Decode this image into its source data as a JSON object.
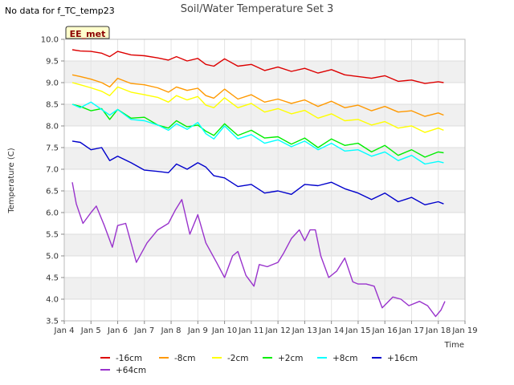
{
  "no_data_text": "No data for f_TC_temp23",
  "chart_data": {
    "type": "line",
    "title": "Soil/Water Temperature Set 3",
    "xlabel": "Time",
    "ylabel": "Temperature (C)",
    "badge": "EE_met",
    "xlim": [
      4,
      19
    ],
    "ylim": [
      3.5,
      10.0
    ],
    "x_ticks": [
      "Jan 4",
      "Jan 5",
      "Jan 6",
      "Jan 7",
      "Jan 8",
      "Jan 9",
      "Jan 10",
      "Jan 11",
      "Jan 12",
      "Jan 13",
      "Jan 14",
      "Jan 15",
      "Jan 16",
      "Jan 17",
      "Jan 18",
      "Jan 19"
    ],
    "y_ticks": [
      "3.5",
      "4.0",
      "4.5",
      "5.0",
      "5.5",
      "6.0",
      "6.5",
      "7.0",
      "7.5",
      "8.0",
      "8.5",
      "9.0",
      "9.5",
      "10.0"
    ],
    "grid": true,
    "legend_position": "bottom",
    "series": [
      {
        "name": "-16cm",
        "color": "#dd0000",
        "x": [
          4.3,
          4.6,
          5.0,
          5.4,
          5.7,
          6.0,
          6.5,
          7.0,
          7.5,
          7.9,
          8.2,
          8.6,
          9.0,
          9.3,
          9.6,
          10.0,
          10.5,
          11.0,
          11.5,
          12.0,
          12.5,
          13.0,
          13.5,
          14.0,
          14.5,
          15.0,
          15.5,
          16.0,
          16.5,
          17.0,
          17.5,
          18.0,
          18.2
        ],
        "y": [
          9.76,
          9.73,
          9.72,
          9.68,
          9.6,
          9.72,
          9.64,
          9.62,
          9.57,
          9.52,
          9.6,
          9.5,
          9.56,
          9.42,
          9.38,
          9.55,
          9.38,
          9.42,
          9.28,
          9.36,
          9.26,
          9.33,
          9.22,
          9.3,
          9.18,
          9.14,
          9.1,
          9.16,
          9.03,
          9.06,
          8.98,
          9.02,
          9.0
        ]
      },
      {
        "name": "-8cm",
        "color": "#ff9900",
        "x": [
          4.3,
          4.6,
          5.0,
          5.4,
          5.7,
          6.0,
          6.5,
          7.0,
          7.5,
          7.9,
          8.2,
          8.6,
          9.0,
          9.3,
          9.6,
          10.0,
          10.5,
          11.0,
          11.5,
          12.0,
          12.5,
          13.0,
          13.5,
          14.0,
          14.5,
          15.0,
          15.5,
          16.0,
          16.5,
          17.0,
          17.5,
          18.0,
          18.2
        ],
        "y": [
          9.18,
          9.14,
          9.08,
          9.0,
          8.9,
          9.1,
          8.98,
          8.95,
          8.88,
          8.78,
          8.9,
          8.82,
          8.87,
          8.7,
          8.64,
          8.85,
          8.62,
          8.72,
          8.55,
          8.62,
          8.52,
          8.6,
          8.45,
          8.57,
          8.42,
          8.48,
          8.35,
          8.45,
          8.32,
          8.35,
          8.22,
          8.3,
          8.25
        ]
      },
      {
        "name": "-2cm",
        "color": "#ffff00",
        "x": [
          4.3,
          4.6,
          5.0,
          5.4,
          5.7,
          6.0,
          6.5,
          7.0,
          7.5,
          7.9,
          8.2,
          8.6,
          9.0,
          9.3,
          9.6,
          10.0,
          10.5,
          11.0,
          11.5,
          12.0,
          12.5,
          13.0,
          13.5,
          14.0,
          14.5,
          15.0,
          15.5,
          16.0,
          16.5,
          17.0,
          17.5,
          18.0,
          18.2
        ],
        "y": [
          9.0,
          8.95,
          8.88,
          8.8,
          8.7,
          8.9,
          8.78,
          8.72,
          8.66,
          8.55,
          8.7,
          8.6,
          8.68,
          8.48,
          8.42,
          8.65,
          8.42,
          8.52,
          8.32,
          8.4,
          8.28,
          8.36,
          8.18,
          8.28,
          8.12,
          8.15,
          8.02,
          8.1,
          7.95,
          8.0,
          7.85,
          7.95,
          7.9
        ]
      },
      {
        "name": "+2cm",
        "color": "#00ee00",
        "x": [
          4.3,
          4.6,
          5.0,
          5.4,
          5.7,
          6.0,
          6.5,
          7.0,
          7.5,
          7.9,
          8.2,
          8.6,
          9.0,
          9.3,
          9.6,
          10.0,
          10.5,
          11.0,
          11.5,
          12.0,
          12.5,
          13.0,
          13.5,
          14.0,
          14.5,
          15.0,
          15.5,
          16.0,
          16.5,
          17.0,
          17.5,
          18.0,
          18.2
        ],
        "y": [
          8.5,
          8.45,
          8.35,
          8.4,
          8.15,
          8.38,
          8.18,
          8.2,
          8.02,
          7.95,
          8.12,
          7.98,
          8.02,
          7.88,
          7.78,
          8.05,
          7.78,
          7.9,
          7.72,
          7.75,
          7.58,
          7.72,
          7.5,
          7.7,
          7.55,
          7.6,
          7.4,
          7.55,
          7.32,
          7.45,
          7.28,
          7.4,
          7.38
        ]
      },
      {
        "name": "+8cm",
        "color": "#00ffff",
        "x": [
          4.3,
          4.6,
          5.0,
          5.4,
          5.7,
          6.0,
          6.5,
          7.0,
          7.5,
          7.9,
          8.2,
          8.6,
          9.0,
          9.3,
          9.6,
          10.0,
          10.5,
          11.0,
          11.5,
          12.0,
          12.5,
          13.0,
          13.5,
          14.0,
          14.5,
          15.0,
          15.5,
          16.0,
          16.5,
          17.0,
          17.5,
          18.0,
          18.2
        ],
        "y": [
          8.5,
          8.42,
          8.55,
          8.38,
          8.25,
          8.38,
          8.15,
          8.12,
          8.02,
          7.9,
          8.05,
          7.92,
          8.08,
          7.82,
          7.7,
          8.0,
          7.7,
          7.8,
          7.6,
          7.68,
          7.52,
          7.65,
          7.45,
          7.6,
          7.42,
          7.45,
          7.3,
          7.4,
          7.2,
          7.32,
          7.12,
          7.18,
          7.15
        ]
      },
      {
        "name": "+16cm",
        "color": "#0000cc",
        "x": [
          4.3,
          4.6,
          5.0,
          5.4,
          5.7,
          6.0,
          6.5,
          7.0,
          7.5,
          7.9,
          8.2,
          8.6,
          9.0,
          9.3,
          9.6,
          10.0,
          10.5,
          11.0,
          11.5,
          12.0,
          12.5,
          13.0,
          13.5,
          14.0,
          14.5,
          15.0,
          15.5,
          16.0,
          16.5,
          17.0,
          17.5,
          18.0,
          18.2
        ],
        "y": [
          7.65,
          7.62,
          7.45,
          7.5,
          7.2,
          7.3,
          7.15,
          6.98,
          6.95,
          6.92,
          7.12,
          7.0,
          7.15,
          7.05,
          6.85,
          6.8,
          6.6,
          6.65,
          6.45,
          6.5,
          6.42,
          6.65,
          6.62,
          6.7,
          6.55,
          6.45,
          6.3,
          6.45,
          6.25,
          6.35,
          6.18,
          6.25,
          6.2
        ]
      },
      {
        "name": "+64cm",
        "color": "#9933cc",
        "x": [
          4.3,
          4.45,
          4.7,
          5.0,
          5.2,
          5.5,
          5.8,
          6.0,
          6.3,
          6.7,
          7.1,
          7.5,
          7.9,
          8.15,
          8.4,
          8.7,
          9.0,
          9.3,
          9.7,
          10.0,
          10.3,
          10.5,
          10.8,
          11.1,
          11.3,
          11.6,
          12.0,
          12.2,
          12.5,
          12.8,
          13.0,
          13.2,
          13.4,
          13.6,
          13.9,
          14.2,
          14.5,
          14.8,
          15.0,
          15.3,
          15.6,
          15.9,
          16.3,
          16.6,
          16.9,
          17.3,
          17.6,
          17.9,
          18.1,
          18.25
        ],
        "y": [
          6.7,
          6.2,
          5.75,
          6.0,
          6.15,
          5.7,
          5.2,
          5.7,
          5.75,
          4.85,
          5.3,
          5.6,
          5.75,
          6.05,
          6.3,
          5.5,
          5.95,
          5.3,
          4.85,
          4.5,
          5.0,
          5.1,
          4.55,
          4.3,
          4.8,
          4.75,
          4.85,
          5.05,
          5.4,
          5.6,
          5.35,
          5.6,
          5.6,
          5.0,
          4.5,
          4.65,
          4.95,
          4.4,
          4.35,
          4.35,
          4.3,
          3.8,
          4.05,
          4.0,
          3.85,
          3.95,
          3.85,
          3.6,
          3.75,
          3.95
        ]
      }
    ]
  }
}
